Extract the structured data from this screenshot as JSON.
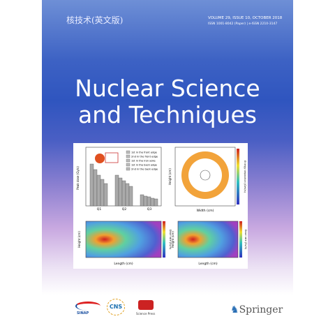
{
  "header": {
    "chinese_title": "核技术(英文版)",
    "volume": "VOLUME 29, ISSUE 10, OCTOBER 2018",
    "issn": "ISSN 1001-8042 (Paper) | e-ISSN 2210-3147"
  },
  "title": {
    "line1": "Nuclear Science",
    "line2": "and Techniques"
  },
  "figure": {
    "panel_a": {
      "y_label": "Peak dose (Gy/s)",
      "categories": [
        "Q1",
        "Q2",
        "Q3"
      ],
      "legend": [
        "1st in the front edge",
        "2nd in the front edge",
        "1st in the iron yoke",
        "1st in the back edge",
        "2nd in the back edge"
      ]
    },
    "panel_b": {
      "x_label": "Width (cm)",
      "y_label": "Height (cm)",
      "colorbar": "Energy deposition (GeV/s)"
    },
    "panel_c": {
      "x_label": "Length (cm)",
      "y_label": "Height (cm)",
      "colorbar": "Dose rate (Sv/h)"
    },
    "panel_d": {
      "x_label": "Length (cm)",
      "y_label": "Height (cm)",
      "colorbar": "Dose rate (Sv/h)"
    }
  },
  "logos": {
    "sinap": "SINAP",
    "cns": "CNS",
    "science_press": "Science Press",
    "springer": "Springer"
  }
}
